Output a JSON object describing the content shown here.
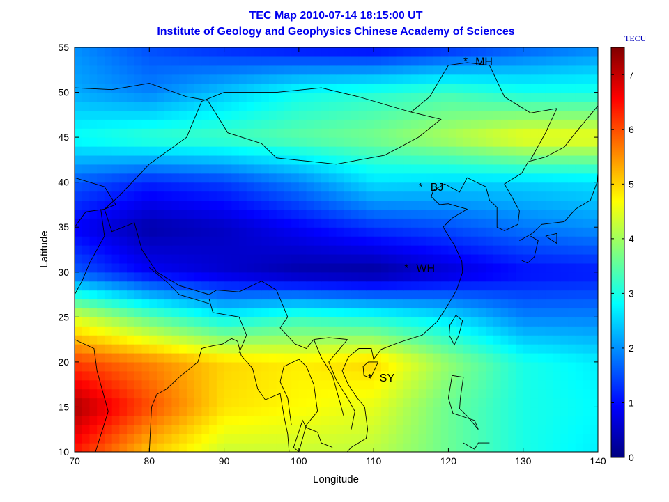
{
  "title_line1": "TEC Map 2010-07-14 18:15:00 UT",
  "title_line2": "Institute of Geology and Geophysics Chinese Academy of Sciences",
  "colorbar_unit": "TECU",
  "colors": {
    "title": "#0000ee",
    "coastline": "#000000"
  },
  "chart_data": {
    "type": "heatmap",
    "xlabel": "Longitude",
    "ylabel": "Latitude",
    "xlim": [
      70,
      140
    ],
    "ylim": [
      10,
      55
    ],
    "xticks": [
      70,
      80,
      90,
      100,
      110,
      120,
      130,
      140
    ],
    "yticks": [
      10,
      15,
      20,
      25,
      30,
      35,
      40,
      45,
      50,
      55
    ],
    "colormap": "jet",
    "colorbar": {
      "min": 0,
      "max": 7.5,
      "ticks": [
        0,
        1,
        2,
        3,
        4,
        5,
        6,
        7
      ],
      "unit": "TECU"
    },
    "tec_grid": {
      "lon": [
        70,
        80,
        90,
        100,
        110,
        120,
        130,
        140
      ],
      "lat": [
        55,
        50,
        45,
        40,
        35,
        30,
        25,
        20,
        15,
        10
      ],
      "values": [
        [
          2.0,
          1.5,
          1.2,
          1.0,
          0.9,
          1.2,
          1.6,
          1.9
        ],
        [
          2.2,
          1.9,
          2.4,
          2.9,
          3.1,
          3.3,
          3.0,
          3.0
        ],
        [
          2.9,
          3.2,
          3.3,
          3.5,
          3.7,
          4.1,
          4.6,
          4.6
        ],
        [
          1.6,
          1.2,
          1.4,
          1.9,
          2.6,
          2.5,
          2.5,
          2.6
        ],
        [
          0.9,
          0.3,
          0.5,
          0.9,
          1.3,
          1.5,
          1.8,
          2.0
        ],
        [
          1.6,
          0.9,
          0.6,
          0.3,
          0.2,
          0.6,
          1.0,
          1.1
        ],
        [
          4.4,
          3.5,
          2.8,
          3.2,
          3.0,
          2.6,
          1.9,
          1.9
        ],
        [
          6.1,
          5.6,
          5.0,
          4.8,
          5.0,
          3.9,
          3.0,
          2.7
        ],
        [
          7.2,
          6.0,
          4.9,
          4.7,
          4.5,
          3.6,
          3.0,
          2.8
        ],
        [
          6.4,
          5.1,
          4.3,
          4.3,
          4.2,
          3.6,
          3.0,
          2.7
        ]
      ]
    },
    "stations": [
      {
        "name": "MH",
        "lon": 122.3,
        "lat": 53.5
      },
      {
        "name": "BJ",
        "lon": 116.3,
        "lat": 39.5
      },
      {
        "name": "WH",
        "lon": 114.4,
        "lat": 30.5
      },
      {
        "name": "SY",
        "lon": 109.5,
        "lat": 18.3
      }
    ]
  }
}
